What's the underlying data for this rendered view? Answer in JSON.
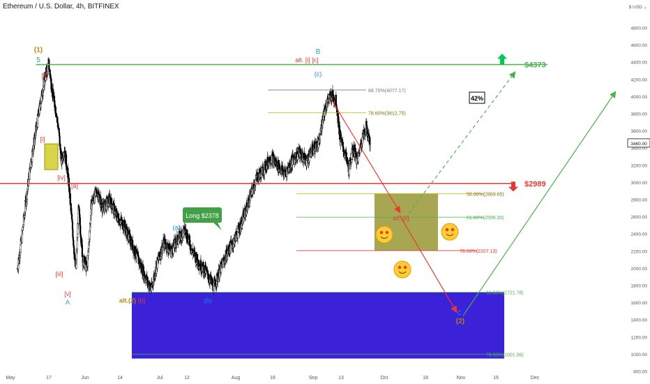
{
  "header": {
    "title": "Ethereum / U.S. Dollar, 4h, BITFINEX"
  },
  "y_axis": {
    "unit": "$ USD ⌄",
    "ticks": [
      "4800.00",
      "4600.00",
      "4400.00",
      "4200.00",
      "4000.00",
      "3800.00",
      "3600.00",
      "3400.00",
      "3200.00",
      "3000.00",
      "2800.00",
      "2600.00",
      "2400.00",
      "2200.00",
      "2000.00",
      "1800.00",
      "1600.00",
      "1400.00",
      "1200.00",
      "1000.00",
      "800.00"
    ],
    "current_price": "3460.00"
  },
  "x_axis": {
    "ticks": [
      "May",
      "17",
      "Jun",
      "14",
      "Jul",
      "12",
      "Aug",
      "16",
      "Sep",
      "13",
      "Oct",
      "18",
      "Nov",
      "15",
      "Dec"
    ]
  },
  "chart_data": {
    "type": "candlestick",
    "title": "Ethereum / U.S. Dollar, 4h, BITFINEX",
    "ylim": [
      780,
      5000
    ],
    "price_path": [
      [
        0,
        2000
      ],
      [
        0.3,
        2350
      ],
      [
        0.6,
        2800
      ],
      [
        1.0,
        3300
      ],
      [
        1.3,
        3600
      ],
      [
        1.6,
        3900
      ],
      [
        1.9,
        4200
      ],
      [
        2.2,
        4380
      ],
      [
        2.5,
        4000
      ],
      [
        2.7,
        3850
      ],
      [
        2.9,
        3600
      ],
      [
        3.0,
        3400
      ],
      [
        3.1,
        3250
      ],
      [
        3.3,
        3400
      ],
      [
        3.6,
        3000
      ],
      [
        3.9,
        2400
      ],
      [
        4.1,
        1950
      ],
      [
        4.3,
        2700
      ],
      [
        4.6,
        2100
      ],
      [
        4.9,
        2000
      ],
      [
        5.2,
        2750
      ],
      [
        5.6,
        2900
      ],
      [
        6.0,
        2700
      ],
      [
        6.5,
        2800
      ],
      [
        7.0,
        2600
      ],
      [
        7.5,
        2500
      ],
      [
        8.0,
        2300
      ],
      [
        8.5,
        2100
      ],
      [
        9.0,
        1900
      ],
      [
        9.4,
        1750
      ],
      [
        9.8,
        2050
      ],
      [
        10.3,
        2300
      ],
      [
        10.8,
        2200
      ],
      [
        11.3,
        2350
      ],
      [
        11.8,
        2450
      ],
      [
        12.3,
        2200
      ],
      [
        12.8,
        2050
      ],
      [
        13.3,
        1950
      ],
      [
        13.8,
        1780
      ],
      [
        14.3,
        2000
      ],
      [
        14.8,
        2200
      ],
      [
        15.3,
        2350
      ],
      [
        15.8,
        2550
      ],
      [
        16.3,
        2800
      ],
      [
        16.8,
        3050
      ],
      [
        17.3,
        3150
      ],
      [
        17.8,
        3300
      ],
      [
        18.3,
        3200
      ],
      [
        18.8,
        3100
      ],
      [
        19.3,
        3250
      ],
      [
        19.8,
        3350
      ],
      [
        20.3,
        3250
      ],
      [
        20.8,
        3400
      ],
      [
        21.2,
        3450
      ],
      [
        21.5,
        3800
      ],
      [
        21.8,
        3950
      ],
      [
        22.1,
        4020
      ],
      [
        22.4,
        3950
      ],
      [
        22.7,
        3500
      ],
      [
        23.0,
        3350
      ],
      [
        23.3,
        3150
      ],
      [
        23.6,
        3400
      ],
      [
        23.9,
        3250
      ],
      [
        24.2,
        3500
      ],
      [
        24.5,
        3650
      ],
      [
        24.8,
        3460
      ]
    ],
    "horizontal_levels": [
      {
        "label": "$4373",
        "price": 4373,
        "color": "#4caf50"
      },
      {
        "label": "88.70%(4077.17)",
        "price": 4077,
        "color": "#787b86"
      },
      {
        "label": "78.60%(3812.75)",
        "price": 3813,
        "color": "#c9b800"
      },
      {
        "label": "$2989",
        "price": 2989,
        "color": "#e53935"
      },
      {
        "label": "50.00%(2869.65)",
        "price": 2870,
        "color": "#c9b800"
      },
      {
        "label": "61.80%(2596.30)",
        "price": 2596,
        "color": "#4caf50"
      },
      {
        "label": "78.60%(2207.13)",
        "price": 2207,
        "color": "#e53935"
      },
      {
        "label": "61.80%(1721.78)",
        "price": 1722,
        "color": "#4caf50"
      },
      {
        "label": "78.60%(1001.06)",
        "price": 1001,
        "color": "#4caf50"
      }
    ],
    "zones": [
      {
        "name": "target-zone-blue",
        "price_top": 1722,
        "price_bottom": 950,
        "color": "#2a0fd6"
      },
      {
        "name": "target-zone-olive",
        "price_top": 2870,
        "price_bottom": 2207,
        "color": "#8a8a1a"
      },
      {
        "name": "small-yellow-zone",
        "price_top": 3450,
        "price_bottom": 3150,
        "color": "#c9c200"
      }
    ],
    "annotations": {
      "wave_1": "(1)",
      "wave_5": "5",
      "ii": "[ii]",
      "i": "[i]",
      "iv": "[iv]",
      "a_bracket": "[a]",
      "iii": "[iii]",
      "v": "[v]",
      "A": "A",
      "alt2": "alt.(2)",
      "b_bracket": "[b]",
      "a_paren": "(a)",
      "b_paren": "(b)",
      "long_label": "Long $2378",
      "B": "B",
      "alt_i_c": "alt. [i] [c]",
      "c_paren": "(c)",
      "pct_42": "42%",
      "alt_ii": "alt. [ii]",
      "C": "C",
      "wave_2": "(2)"
    }
  }
}
